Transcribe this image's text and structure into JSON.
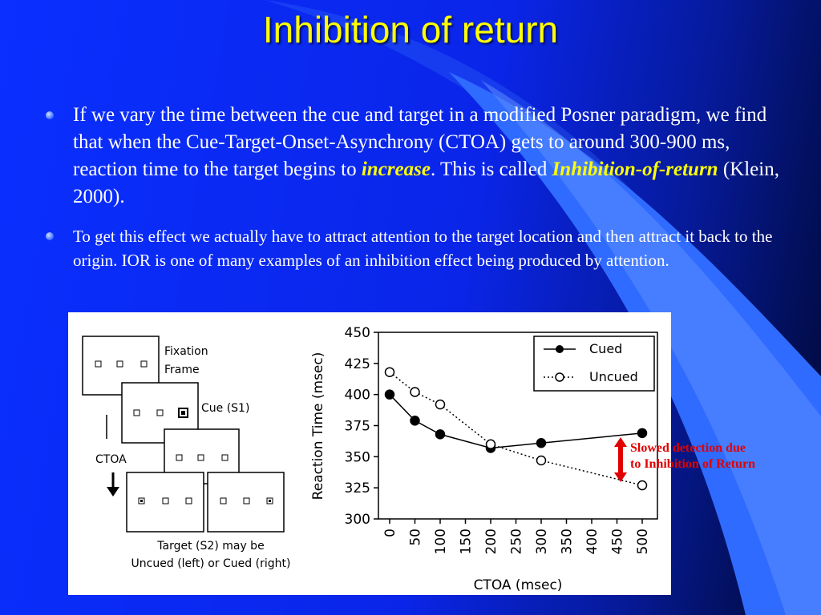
{
  "slide": {
    "title": "Inhibition of return",
    "bullet1": {
      "part1": "If we vary the time between the cue and target in a modified Posner paradigm, we find that when the Cue-Target-Onset-Asynchrony (CTOA) gets to around 300-900 ms, reaction time to the target begins to ",
      "emph1": "increase",
      "part2": ".  This is called ",
      "emph2": "Inhibition-of-return",
      "part3": " (Klein, 2000)."
    },
    "bullet2": "To get this effect we actually have to attract attention to the target location and then attract it back to the origin. IOR is one of many examples of an inhibition effect being produced by attention.",
    "annotation_line1": "Slowed detection due",
    "annotation_line2": "to Inhibition of Return"
  },
  "diagram": {
    "fixation_line1": "Fixation",
    "fixation_line2": "Frame",
    "cue_label": "Cue (S1)",
    "ctoa_label": "CTOA",
    "target_line1": "Target (S2) may be",
    "target_line2": "Uncued (left) or Cued (right)"
  },
  "chart_data": {
    "type": "line",
    "xlabel": "CTOA (msec)",
    "ylabel": "Reaction Time (msec)",
    "ylim": [
      300,
      450
    ],
    "xlim": [
      0,
      500
    ],
    "xticks": [
      0,
      50,
      100,
      150,
      200,
      250,
      300,
      350,
      400,
      450,
      500
    ],
    "yticks": [
      300,
      325,
      350,
      375,
      400,
      425,
      450
    ],
    "legend_position": "top-right",
    "series": [
      {
        "name": "Cued",
        "style": "solid",
        "marker": "filled-circle",
        "x": [
          0,
          50,
          100,
          200,
          300,
          500
        ],
        "y": [
          400,
          379,
          368,
          357,
          361,
          369
        ]
      },
      {
        "name": "Uncued",
        "style": "dotted",
        "marker": "open-circle",
        "x": [
          0,
          50,
          100,
          200,
          300,
          500
        ],
        "y": [
          418,
          402,
          392,
          360,
          347,
          327
        ]
      }
    ]
  }
}
